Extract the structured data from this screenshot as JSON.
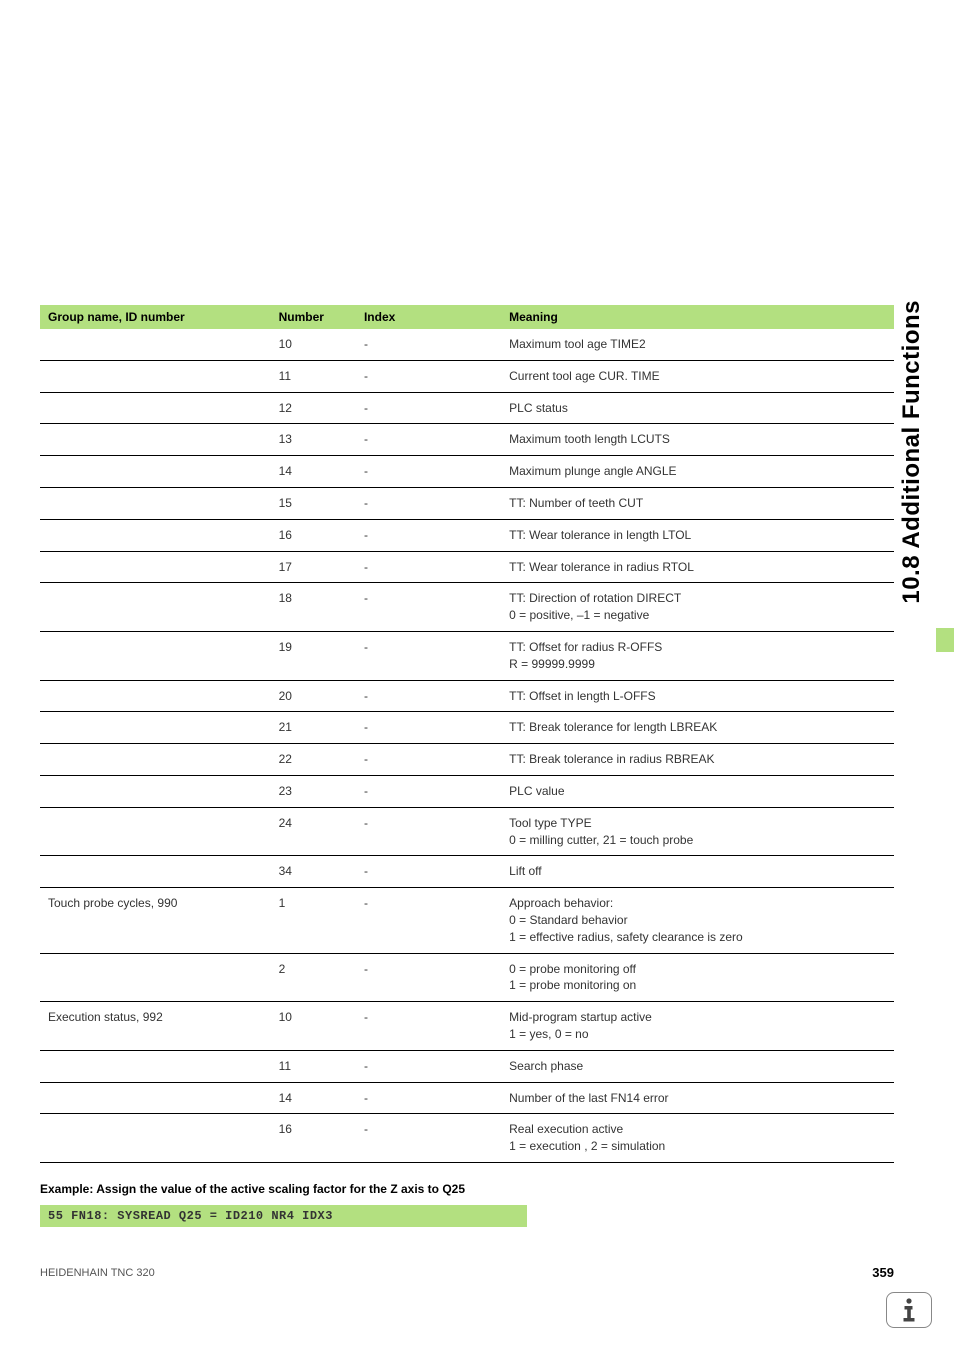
{
  "side_heading": "10.8 Additional Functions",
  "table": {
    "headers": {
      "group": "Group name, ID number",
      "number": "Number",
      "index": "Index",
      "meaning": "Meaning"
    },
    "rows": [
      {
        "group": "",
        "number": "10",
        "index": "-",
        "meaning": "Maximum tool age TIME2"
      },
      {
        "group": "",
        "number": "11",
        "index": "-",
        "meaning": "Current tool age CUR. TIME"
      },
      {
        "group": "",
        "number": "12",
        "index": "-",
        "meaning": "PLC status"
      },
      {
        "group": "",
        "number": "13",
        "index": "-",
        "meaning": "Maximum tooth length LCUTS"
      },
      {
        "group": "",
        "number": "14",
        "index": "-",
        "meaning": "Maximum plunge angle ANGLE"
      },
      {
        "group": "",
        "number": "15",
        "index": "-",
        "meaning": "TT: Number of teeth CUT"
      },
      {
        "group": "",
        "number": "16",
        "index": "-",
        "meaning": "TT: Wear tolerance in length LTOL"
      },
      {
        "group": "",
        "number": "17",
        "index": "-",
        "meaning": "TT: Wear tolerance in radius RTOL"
      },
      {
        "group": "",
        "number": "18",
        "index": "-",
        "meaning": "TT: Direction of rotation DIRECT\n0 = positive, –1 = negative"
      },
      {
        "group": "",
        "number": "19",
        "index": "-",
        "meaning": "TT: Offset for radius R-OFFS\nR = 99999.9999"
      },
      {
        "group": "",
        "number": "20",
        "index": "-",
        "meaning": "TT: Offset in length L-OFFS"
      },
      {
        "group": "",
        "number": "21",
        "index": "-",
        "meaning": "TT: Break tolerance for length LBREAK"
      },
      {
        "group": "",
        "number": "22",
        "index": "-",
        "meaning": "TT: Break tolerance in radius RBREAK"
      },
      {
        "group": "",
        "number": "23",
        "index": "-",
        "meaning": "PLC value"
      },
      {
        "group": "",
        "number": "24",
        "index": "-",
        "meaning": "Tool type TYPE\n0 = milling cutter, 21 = touch probe"
      },
      {
        "group": "",
        "number": "34",
        "index": "-",
        "meaning": "Lift off"
      },
      {
        "group": "Touch probe cycles, 990",
        "number": "1",
        "index": "-",
        "meaning": "Approach behavior:\n0 = Standard behavior\n1 = effective radius, safety clearance is zero"
      },
      {
        "group": "",
        "number": "2",
        "index": "-",
        "meaning": "0 = probe monitoring off\n1 = probe monitoring on"
      },
      {
        "group": "Execution status, 992",
        "number": "10",
        "index": "-",
        "meaning": "Mid-program startup active\n1 = yes, 0 = no"
      },
      {
        "group": "",
        "number": "11",
        "index": "-",
        "meaning": "Search phase"
      },
      {
        "group": "",
        "number": "14",
        "index": "-",
        "meaning": "Number of the last FN14 error"
      },
      {
        "group": "",
        "number": "16",
        "index": "-",
        "meaning": "Real execution active\n1 = execution , 2 = simulation"
      }
    ]
  },
  "example": {
    "heading": "Example: Assign the value of the active scaling factor for the Z axis to Q25",
    "code": "55 FN18: SYSREAD Q25 = ID210 NR4 IDX3"
  },
  "footer": {
    "left": "HEIDENHAIN TNC 320",
    "page": "359"
  }
}
